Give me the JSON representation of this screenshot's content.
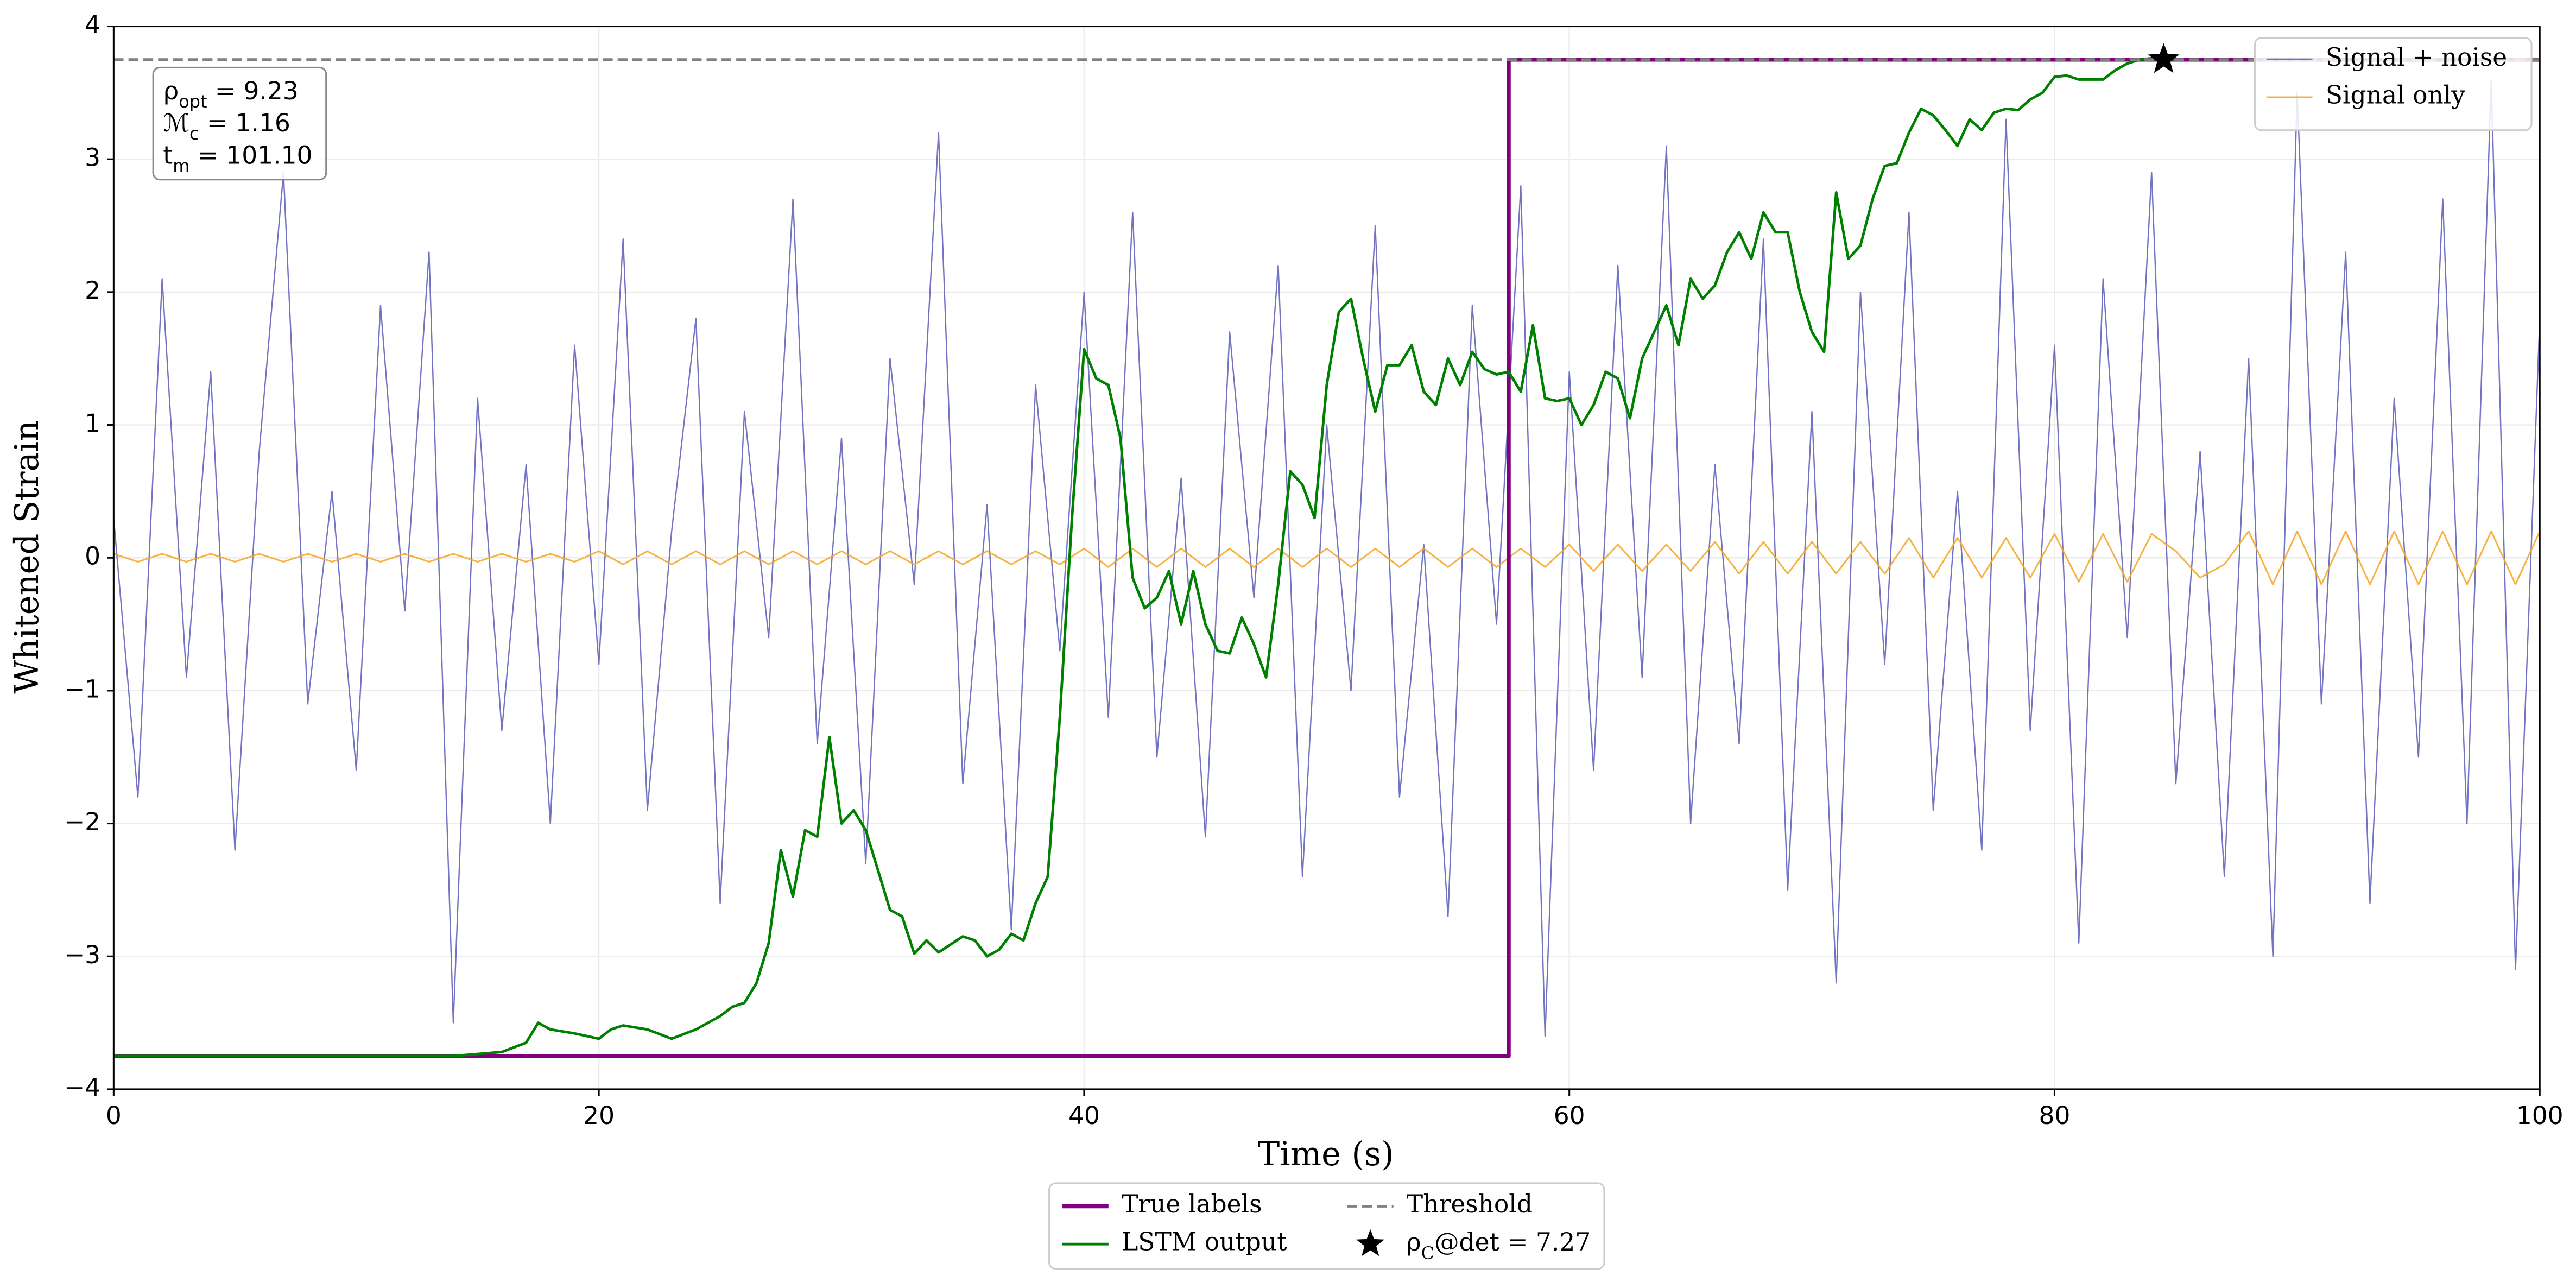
{
  "chart_data": {
    "type": "line",
    "xlabel": "Time (s)",
    "ylabel": "Whitened Strain",
    "xlim": [
      0,
      100
    ],
    "ylim": [
      -4,
      4
    ],
    "xticks": [
      0,
      20,
      40,
      60,
      80,
      100
    ],
    "yticks": [
      {
        "value": -4,
        "label": "−4"
      },
      {
        "value": -3,
        "label": "−3"
      },
      {
        "value": -2,
        "label": "−2"
      },
      {
        "value": -1,
        "label": "−1"
      },
      0,
      1,
      2,
      3,
      4
    ],
    "grid": true,
    "x": [
      0,
      1,
      2,
      3,
      4,
      5,
      6,
      7,
      8,
      9,
      10,
      11,
      12,
      13,
      14,
      15,
      16,
      17,
      18,
      19,
      20,
      21,
      22,
      23,
      24,
      25,
      26,
      27,
      28,
      29,
      30,
      31,
      32,
      33,
      34,
      35,
      36,
      37,
      38,
      39,
      40,
      41,
      42,
      43,
      44,
      45,
      46,
      47,
      48,
      49,
      50,
      51,
      52,
      53,
      54,
      55,
      56,
      57,
      58,
      59,
      60,
      61,
      62,
      63,
      64,
      65,
      66,
      67,
      68,
      69,
      70,
      71,
      72,
      73,
      74,
      75,
      76,
      77,
      78,
      79,
      80,
      81,
      82,
      83,
      84,
      85,
      86,
      87,
      88,
      89,
      90,
      91,
      92,
      93,
      94,
      95,
      96,
      97,
      98,
      99,
      100
    ],
    "series": [
      {
        "name": "Signal + noise",
        "color": "#5b5bb8",
        "legend": "upper right",
        "values": [
          0.3,
          -1.8,
          2.1,
          -0.9,
          1.4,
          -2.2,
          0.8,
          2.9,
          -1.1,
          0.5,
          -1.6,
          1.9,
          -0.4,
          2.3,
          -3.5,
          1.2,
          -1.3,
          0.7,
          -2.0,
          1.6,
          -0.8,
          2.4,
          -1.9,
          0.2,
          1.8,
          -2.6,
          1.1,
          -0.6,
          2.7,
          -1.4,
          0.9,
          -2.3,
          1.5,
          -0.2,
          3.2,
          -1.7,
          0.4,
          -2.8,
          1.3,
          -0.7,
          2.0,
          -1.2,
          2.6,
          -1.5,
          0.6,
          -2.1,
          1.7,
          -0.3,
          2.2,
          -2.4,
          1.0,
          -1.0,
          2.5,
          -1.8,
          0.1,
          -2.7,
          1.9,
          -0.5,
          2.8,
          -3.6,
          1.4,
          -1.6,
          2.2,
          -0.9,
          3.1,
          -2.0,
          0.7,
          -1.4,
          2.4,
          -2.5,
          1.1,
          -3.2,
          2.0,
          -0.8,
          2.6,
          -1.9,
          0.5,
          -2.2,
          3.3,
          -1.3,
          1.6,
          -2.9,
          2.1,
          -0.6,
          2.9,
          -1.7,
          0.8,
          -2.4,
          1.5,
          -3.0,
          3.5,
          -1.1,
          2.3,
          -2.6,
          1.2,
          -1.5,
          2.7,
          -2.0,
          3.6,
          -3.1,
          1.8
        ]
      },
      {
        "name": "Signal only",
        "color": "#f5a623",
        "legend": "upper right",
        "values": [
          0.03,
          -0.03,
          0.03,
          -0.03,
          0.03,
          -0.03,
          0.03,
          -0.03,
          0.03,
          -0.03,
          0.03,
          -0.03,
          0.03,
          -0.03,
          0.03,
          -0.03,
          0.03,
          -0.03,
          0.03,
          -0.03,
          0.05,
          -0.05,
          0.05,
          -0.05,
          0.05,
          -0.05,
          0.05,
          -0.05,
          0.05,
          -0.05,
          0.05,
          -0.05,
          0.05,
          -0.05,
          0.05,
          -0.05,
          0.05,
          -0.05,
          0.05,
          -0.05,
          0.07,
          -0.07,
          0.07,
          -0.07,
          0.07,
          -0.07,
          0.07,
          -0.07,
          0.07,
          -0.07,
          0.07,
          -0.07,
          0.07,
          -0.07,
          0.07,
          -0.07,
          0.07,
          -0.07,
          0.07,
          -0.07,
          0.1,
          -0.1,
          0.1,
          -0.1,
          0.1,
          -0.1,
          0.12,
          -0.12,
          0.12,
          -0.12,
          0.12,
          -0.12,
          0.12,
          -0.12,
          0.15,
          -0.15,
          0.15,
          -0.15,
          0.15,
          -0.15,
          0.18,
          -0.18,
          0.18,
          -0.18,
          0.18,
          0.05,
          -0.15,
          -0.05,
          0.2,
          -0.2,
          0.2,
          -0.2,
          0.2,
          -0.2,
          0.2,
          -0.2,
          0.2,
          -0.2,
          0.2,
          -0.2,
          0.2
        ]
      },
      {
        "name": "True labels",
        "color": "#800080",
        "legend": "below",
        "x": [
          0,
          57.5,
          57.5,
          100
        ],
        "values": [
          -3.75,
          -3.75,
          3.75,
          3.75
        ]
      },
      {
        "name": "LSTM output",
        "color": "#008000",
        "legend": "below",
        "x": [
          0,
          5,
          10,
          14,
          16,
          17,
          17.5,
          18,
          19,
          20,
          20.5,
          21,
          22,
          23,
          24,
          25,
          25.5,
          26,
          26.5,
          27,
          27.5,
          28,
          28.5,
          29,
          29.5,
          30,
          30.5,
          31,
          32,
          32.5,
          33,
          33.5,
          34,
          35,
          35.5,
          36,
          36.5,
          37,
          37.5,
          38,
          38.5,
          39,
          39.5,
          40,
          40.5,
          41,
          41.5,
          42,
          42.5,
          43,
          43.5,
          44,
          44.5,
          45,
          45.5,
          46,
          46.5,
          47,
          47.5,
          48,
          48.5,
          49,
          49.5,
          50,
          50.5,
          51,
          51.5,
          52,
          52.5,
          53,
          53.5,
          54,
          54.5,
          55,
          55.5,
          56,
          56.5,
          57,
          57.5,
          58,
          58.5,
          59,
          59.5,
          60,
          60.5,
          61,
          61.5,
          62,
          62.5,
          63,
          64,
          64.5,
          65,
          65.5,
          66,
          66.5,
          67,
          67.5,
          68,
          68.5,
          69,
          69.5,
          70,
          70.5,
          71,
          71.5,
          72,
          72.5,
          73,
          73.5,
          74,
          74.5,
          75,
          75.5,
          76,
          76.5,
          77,
          77.5,
          78,
          78.5,
          79,
          79.5,
          80,
          80.5,
          81,
          82,
          82.5,
          83,
          83.5,
          84,
          85
        ],
        "values": [
          -3.75,
          -3.75,
          -3.75,
          -3.75,
          -3.72,
          -3.65,
          -3.5,
          -3.55,
          -3.58,
          -3.62,
          -3.55,
          -3.52,
          -3.55,
          -3.62,
          -3.55,
          -3.45,
          -3.38,
          -3.35,
          -3.2,
          -2.9,
          -2.2,
          -2.55,
          -2.05,
          -2.1,
          -1.35,
          -2.0,
          -1.9,
          -2.05,
          -2.65,
          -2.7,
          -2.98,
          -2.88,
          -2.97,
          -2.85,
          -2.88,
          -3.0,
          -2.95,
          -2.83,
          -2.88,
          -2.6,
          -2.4,
          -1.2,
          0.3,
          1.57,
          1.35,
          1.3,
          0.9,
          -0.15,
          -0.38,
          -0.3,
          -0.1,
          -0.5,
          -0.1,
          -0.5,
          -0.7,
          -0.72,
          -0.45,
          -0.65,
          -0.9,
          -0.2,
          0.65,
          0.55,
          0.3,
          1.3,
          1.85,
          1.95,
          1.5,
          1.1,
          1.45,
          1.45,
          1.6,
          1.25,
          1.15,
          1.5,
          1.3,
          1.55,
          1.42,
          1.38,
          1.4,
          1.25,
          1.75,
          1.2,
          1.18,
          1.2,
          1.0,
          1.15,
          1.4,
          1.35,
          1.05,
          1.5,
          1.9,
          1.6,
          2.1,
          1.95,
          2.05,
          2.3,
          2.45,
          2.25,
          2.6,
          2.45,
          2.45,
          2.0,
          1.7,
          1.55,
          2.75,
          2.25,
          2.35,
          2.7,
          2.95,
          2.97,
          3.2,
          3.38,
          3.33,
          3.22,
          3.1,
          3.3,
          3.22,
          3.35,
          3.38,
          3.37,
          3.45,
          3.5,
          3.62,
          3.63,
          3.6,
          3.6,
          3.67,
          3.72,
          3.75,
          3.76,
          3.75
        ]
      }
    ],
    "threshold": {
      "name": "Threshold",
      "value": 3.75,
      "color": "#808080"
    },
    "marker_point": {
      "name": "ρ_C@det = 7.27",
      "x": 84.5,
      "y": 3.75,
      "color": "#000000"
    },
    "annotation": [
      "ρ_{opt} = 9.23",
      "ℳ_c = 1.16",
      "t_m = 101.10"
    ]
  }
}
